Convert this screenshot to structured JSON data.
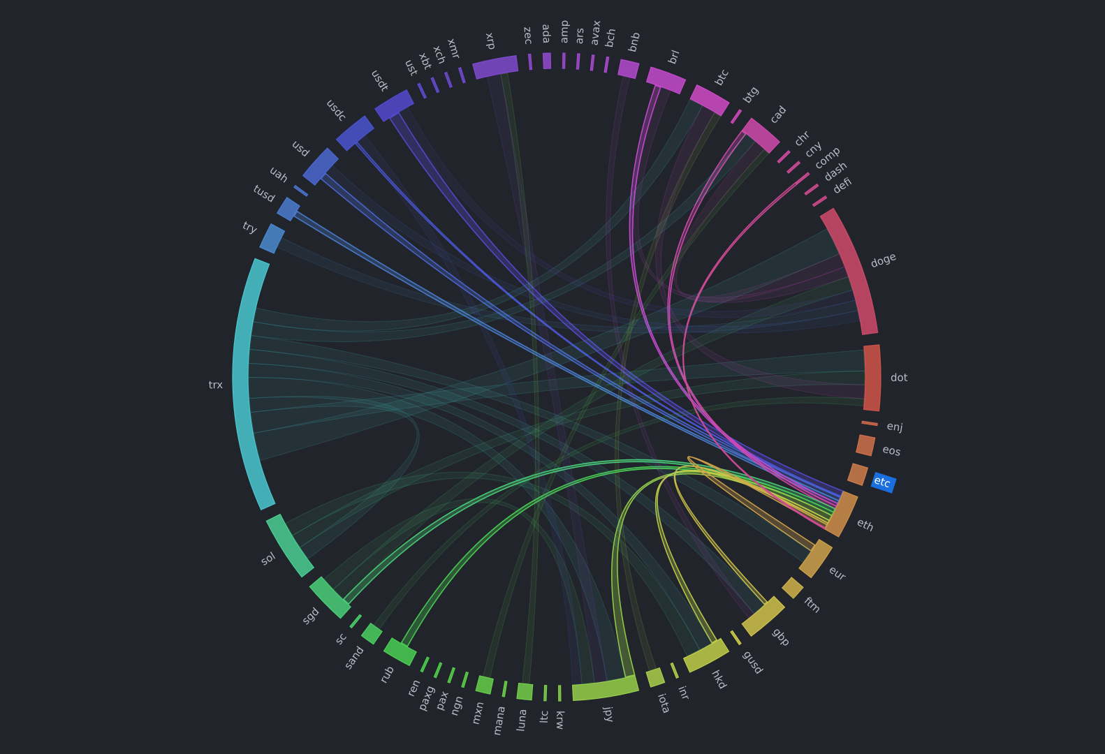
{
  "chart_data": {
    "type": "chord",
    "nodes": [
      "zec",
      "ada",
      "amp",
      "ars",
      "avax",
      "bch",
      "bnb",
      "brl",
      "btc",
      "btg",
      "cad",
      "chr",
      "cny",
      "comp",
      "dash",
      "defi",
      "doge",
      "dot",
      "enj",
      "eos",
      "etc",
      "eth",
      "eur",
      "ftm",
      "gbp",
      "gusd",
      "hkd",
      "inr",
      "iota",
      "jpy",
      "krw",
      "ltc",
      "luna",
      "mana",
      "mxn",
      "ngn",
      "pax",
      "paxg",
      "ren",
      "rub",
      "sand",
      "sc",
      "sgd",
      "sol",
      "trx",
      "try",
      "tusd",
      "uah",
      "usd",
      "usdc",
      "usdt",
      "ust",
      "xbt",
      "xch",
      "xmr",
      "xrp"
    ],
    "values": [
      0.3,
      1,
      0.3,
      0.3,
      0.3,
      0.3,
      2.5,
      5,
      5,
      0.3,
      5,
      0.3,
      0.3,
      0.3,
      0.3,
      0.3,
      18,
      9,
      0.3,
      2.5,
      2.5,
      6,
      5,
      2,
      6,
      0.3,
      6,
      0.3,
      2,
      9,
      0.3,
      0.3,
      2,
      0.3,
      2,
      0.3,
      0.3,
      0.3,
      0.3,
      4,
      2,
      0.3,
      6,
      9,
      35,
      3.5,
      2.5,
      0.3,
      5,
      5,
      5,
      0.3,
      0.3,
      0.3,
      0.3,
      6
    ],
    "selected": "eth",
    "hovered": "etc",
    "links": [
      {
        "source": "eth",
        "target": "usdt",
        "value": 1.5
      },
      {
        "source": "eth",
        "target": "usdc",
        "value": 0.3
      },
      {
        "source": "eth",
        "target": "usd",
        "value": 1
      },
      {
        "source": "eth",
        "target": "tusd",
        "value": 0.8
      },
      {
        "source": "eth",
        "target": "brl",
        "value": 0.8
      },
      {
        "source": "eth",
        "target": "cad",
        "value": 0.8
      },
      {
        "source": "eth",
        "target": "sgd",
        "value": 1
      },
      {
        "source": "eth",
        "target": "rub",
        "value": 1
      },
      {
        "source": "eth",
        "target": "jpy",
        "value": 1.5
      },
      {
        "source": "eth",
        "target": "hkd",
        "value": 0.8
      },
      {
        "source": "eth",
        "target": "gbp",
        "value": 0.5
      },
      {
        "source": "eth",
        "target": "eur",
        "value": 1
      },
      {
        "source": "eth",
        "target": "comp",
        "value": 0.3
      },
      {
        "source": "trx",
        "target": "doge",
        "value": 4
      },
      {
        "source": "trx",
        "target": "dot",
        "value": 3
      },
      {
        "source": "trx",
        "target": "sol",
        "value": 2
      },
      {
        "source": "trx",
        "target": "jpy",
        "value": 3
      },
      {
        "source": "trx",
        "target": "hkd",
        "value": 2
      },
      {
        "source": "trx",
        "target": "gbp",
        "value": 2
      },
      {
        "source": "trx",
        "target": "eur",
        "value": 2
      },
      {
        "source": "trx",
        "target": "cad",
        "value": 2
      },
      {
        "source": "trx",
        "target": "btc",
        "value": 2
      },
      {
        "source": "sol",
        "target": "dot",
        "value": 2
      },
      {
        "source": "sol",
        "target": "hkd",
        "value": 2
      },
      {
        "source": "xrp",
        "target": "jpy",
        "value": 2
      },
      {
        "source": "btc",
        "target": "dot",
        "value": 2
      },
      {
        "source": "cad",
        "target": "doge",
        "value": 2
      },
      {
        "source": "brl",
        "target": "doge",
        "value": 1.5
      },
      {
        "source": "bnb",
        "target": "gbp",
        "value": 1
      },
      {
        "source": "sgd",
        "target": "doge",
        "value": 2
      },
      {
        "source": "sgd",
        "target": "jpy",
        "value": 2
      },
      {
        "source": "usdt",
        "target": "doge",
        "value": 1.5
      },
      {
        "source": "try",
        "target": "doge",
        "value": 1.5
      },
      {
        "source": "usd",
        "target": "doge",
        "value": 1.5
      },
      {
        "source": "usdc",
        "target": "jpy",
        "value": 1.5
      },
      {
        "source": "luna",
        "target": "xrp",
        "value": 1
      },
      {
        "source": "mxn",
        "target": "cad",
        "value": 1
      },
      {
        "source": "sand",
        "target": "dot",
        "value": 1
      },
      {
        "source": "iota",
        "target": "btc",
        "value": 1
      }
    ]
  }
}
